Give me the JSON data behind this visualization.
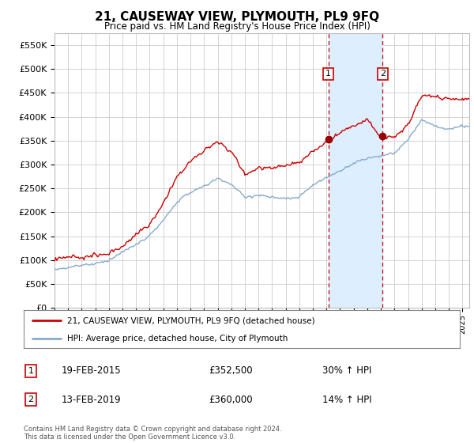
{
  "title": "21, CAUSEWAY VIEW, PLYMOUTH, PL9 9FQ",
  "subtitle": "Price paid vs. HM Land Registry's House Price Index (HPI)",
  "xlim_start": 1995.0,
  "xlim_end": 2025.5,
  "ylim": [
    0,
    575000
  ],
  "yticks": [
    0,
    50000,
    100000,
    150000,
    200000,
    250000,
    300000,
    350000,
    400000,
    450000,
    500000,
    550000
  ],
  "ytick_labels": [
    "£0",
    "£50K",
    "£100K",
    "£150K",
    "£200K",
    "£250K",
    "£300K",
    "£350K",
    "£400K",
    "£450K",
    "£500K",
    "£550K"
  ],
  "legend_line1": "21, CAUSEWAY VIEW, PLYMOUTH, PL9 9FQ (detached house)",
  "legend_line2": "HPI: Average price, detached house, City of Plymouth",
  "sale1_date": "19-FEB-2015",
  "sale1_price": "£352,500",
  "sale1_hpi": "30% ↑ HPI",
  "sale1_x": 2015.13,
  "sale1_y": 352500,
  "sale2_date": "13-FEB-2019",
  "sale2_price": "£360,000",
  "sale2_hpi": "14% ↑ HPI",
  "sale2_x": 2019.13,
  "sale2_y": 360000,
  "shade_x1": 2015.13,
  "shade_x2": 2019.13,
  "footer": "Contains HM Land Registry data © Crown copyright and database right 2024.\nThis data is licensed under the Open Government Licence v3.0.",
  "red_line_color": "#cc0000",
  "blue_line_color": "#88aacc",
  "shade_color": "#ddeeff",
  "grid_color": "#cccccc",
  "bg_color": "#ffffff",
  "sale_marker_color": "#990000",
  "sale_vline_color": "#cc0000"
}
